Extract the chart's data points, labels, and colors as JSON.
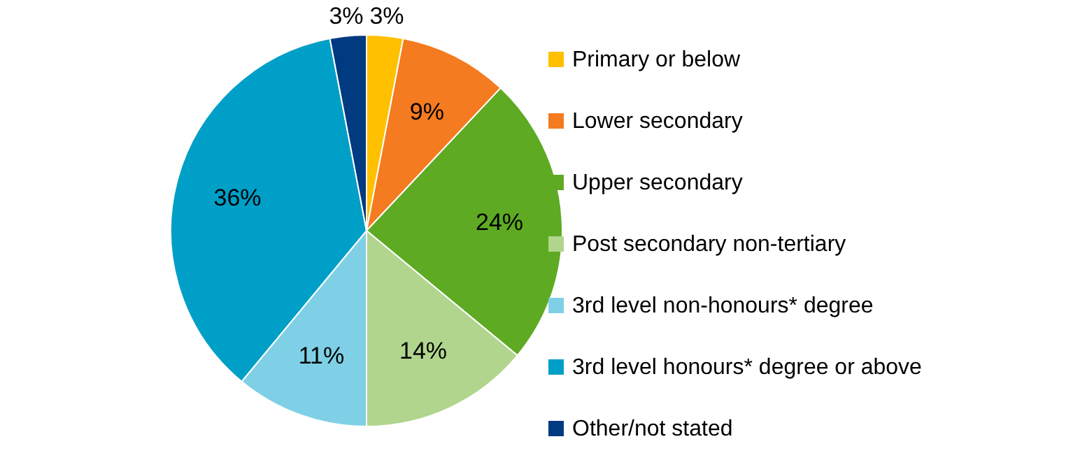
{
  "chart_data": {
    "type": "pie",
    "categories": [
      "Primary or below",
      "Lower secondary",
      "Upper secondary",
      "Post secondary non-tertiary",
      "3rd level non-honours* degree",
      "3rd level honours* degree or above",
      "Other/not stated"
    ],
    "values": [
      3,
      9,
      24,
      14,
      11,
      36,
      3
    ],
    "colors": [
      "#ffc000",
      "#f47b20",
      "#5eaa22",
      "#b1d58d",
      "#7fd0e6",
      "#009fc7",
      "#003a80"
    ],
    "value_labels": [
      "3%",
      "9%",
      "24%",
      "14%",
      "11%",
      "36%",
      "3%"
    ],
    "legend": "right"
  }
}
